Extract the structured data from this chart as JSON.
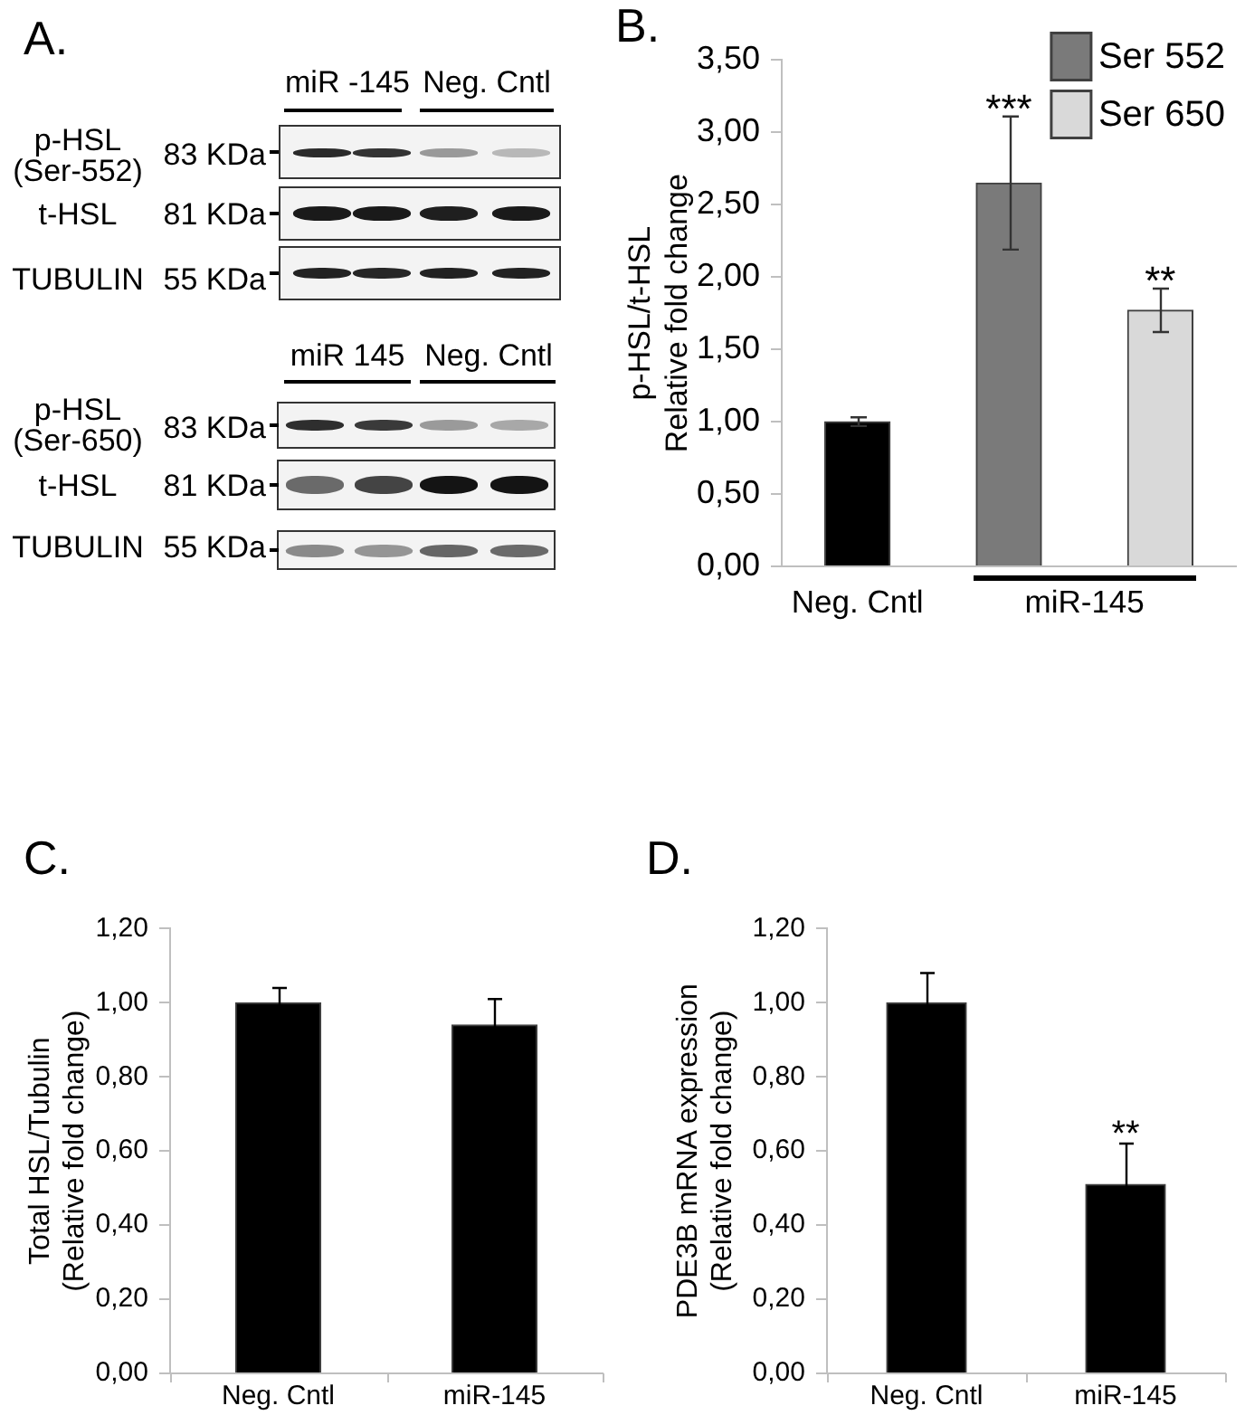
{
  "chart_data": [
    {
      "type": "other",
      "title": "A.",
      "annotations": [
        "miR -145",
        "Neg. Cntl",
        "p-HSL",
        "(Ser-552)",
        "83 KDa",
        "t-HSL",
        "81 KDa",
        "TUBULIN",
        "55 KDa",
        "miR 145",
        "Neg. Cntl",
        "p-HSL",
        "(Ser-650)",
        "83 KDa",
        "t-HSL",
        "81 KDa",
        "TUBULIN",
        "55 KDa"
      ]
    },
    {
      "type": "bar",
      "title": "B.",
      "ylabel": "p-HSL/t-HSL\nRelative fold change",
      "categories": [
        "Neg. Cntl",
        "miR-145"
      ],
      "series": [
        {
          "color": "#000000",
          "values": [
            1.0,
            null
          ],
          "errors": [
            0.03,
            null
          ]
        },
        {
          "name": "Ser 552",
          "color": "#7a7a7a",
          "values": [
            null,
            2.65
          ],
          "errors": [
            null,
            0.46
          ]
        },
        {
          "name": "Ser 650",
          "color": "#d9d9d9",
          "values": [
            null,
            1.77
          ],
          "errors": [
            null,
            0.15
          ]
        }
      ],
      "ylim": [
        0,
        3.5
      ],
      "yticks": [
        {
          "value": 0,
          "label": "0,00"
        },
        {
          "value": 0.5,
          "label": "0,50"
        },
        {
          "value": 1,
          "label": "1,00"
        },
        {
          "value": 1.5,
          "label": "1,50"
        },
        {
          "value": 2,
          "label": "2,00"
        },
        {
          "value": 2.5,
          "label": "2,50"
        },
        {
          "value": 3,
          "label": "3,00"
        },
        {
          "value": 3.5,
          "label": "3,50"
        }
      ],
      "legend": "top right",
      "annotations": [
        "***",
        "**"
      ]
    },
    {
      "type": "bar",
      "title": "C.",
      "ylabel": "Total HSL/Tubulin\n(Relative fold change)",
      "categories": [
        "Neg. Cntl",
        "miR-145"
      ],
      "values": [
        1.0,
        0.94
      ],
      "errors": [
        0.04,
        0.07
      ],
      "color": "#000000",
      "ylim": [
        0,
        1.2
      ],
      "yticks": [
        {
          "value": 0,
          "label": "0,00"
        },
        {
          "value": 0.2,
          "label": "0,20"
        },
        {
          "value": 0.4,
          "label": "0,40"
        },
        {
          "value": 0.6,
          "label": "0,60"
        },
        {
          "value": 0.8,
          "label": "0,80"
        },
        {
          "value": 1,
          "label": "1,00"
        },
        {
          "value": 1.2,
          "label": "1,20"
        }
      ]
    },
    {
      "type": "bar",
      "title": "D.",
      "ylabel": "PDE3B mRNA expression\n(Relative fold change)",
      "categories": [
        "Neg. Cntl",
        "miR-145"
      ],
      "values": [
        1.0,
        0.51
      ],
      "errors": [
        0.08,
        0.11
      ],
      "color": "#000000",
      "ylim": [
        0,
        1.2
      ],
      "yticks": [
        {
          "value": 0,
          "label": "0,00"
        },
        {
          "value": 0.2,
          "label": "0,20"
        },
        {
          "value": 0.4,
          "label": "0,40"
        },
        {
          "value": 0.6,
          "label": "0,60"
        },
        {
          "value": 0.8,
          "label": "0,80"
        },
        {
          "value": 1,
          "label": "1,00"
        },
        {
          "value": 1.2,
          "label": "1,20"
        }
      ],
      "annotations": [
        "**"
      ]
    }
  ]
}
